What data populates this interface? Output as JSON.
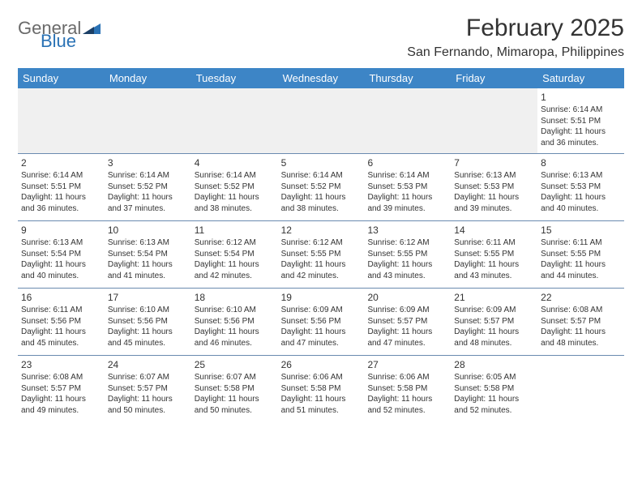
{
  "logo": {
    "textA": "General",
    "textB": "Blue",
    "colorA": "#6a6a6a",
    "colorB": "#2a72b5"
  },
  "title": "February 2025",
  "location": "San Fernando, Mimaropa, Philippines",
  "colors": {
    "header_bg": "#3d85c6",
    "header_text": "#ffffff",
    "row_divider": "#6a8bb0",
    "blank_bg": "#f0f0f0",
    "text": "#333333",
    "background": "#ffffff"
  },
  "typography": {
    "title_fontsize": 30,
    "location_fontsize": 16,
    "dayheader_fontsize": 13,
    "daynum_fontsize": 12,
    "info_fontsize": 10
  },
  "layout": {
    "columns": 7,
    "rows": 5
  },
  "dayNames": [
    "Sunday",
    "Monday",
    "Tuesday",
    "Wednesday",
    "Thursday",
    "Friday",
    "Saturday"
  ],
  "weeks": [
    [
      null,
      null,
      null,
      null,
      null,
      null,
      {
        "n": "1",
        "sunrise": "Sunrise: 6:14 AM",
        "sunset": "Sunset: 5:51 PM",
        "day1": "Daylight: 11 hours",
        "day2": "and 36 minutes."
      }
    ],
    [
      {
        "n": "2",
        "sunrise": "Sunrise: 6:14 AM",
        "sunset": "Sunset: 5:51 PM",
        "day1": "Daylight: 11 hours",
        "day2": "and 36 minutes."
      },
      {
        "n": "3",
        "sunrise": "Sunrise: 6:14 AM",
        "sunset": "Sunset: 5:52 PM",
        "day1": "Daylight: 11 hours",
        "day2": "and 37 minutes."
      },
      {
        "n": "4",
        "sunrise": "Sunrise: 6:14 AM",
        "sunset": "Sunset: 5:52 PM",
        "day1": "Daylight: 11 hours",
        "day2": "and 38 minutes."
      },
      {
        "n": "5",
        "sunrise": "Sunrise: 6:14 AM",
        "sunset": "Sunset: 5:52 PM",
        "day1": "Daylight: 11 hours",
        "day2": "and 38 minutes."
      },
      {
        "n": "6",
        "sunrise": "Sunrise: 6:14 AM",
        "sunset": "Sunset: 5:53 PM",
        "day1": "Daylight: 11 hours",
        "day2": "and 39 minutes."
      },
      {
        "n": "7",
        "sunrise": "Sunrise: 6:13 AM",
        "sunset": "Sunset: 5:53 PM",
        "day1": "Daylight: 11 hours",
        "day2": "and 39 minutes."
      },
      {
        "n": "8",
        "sunrise": "Sunrise: 6:13 AM",
        "sunset": "Sunset: 5:53 PM",
        "day1": "Daylight: 11 hours",
        "day2": "and 40 minutes."
      }
    ],
    [
      {
        "n": "9",
        "sunrise": "Sunrise: 6:13 AM",
        "sunset": "Sunset: 5:54 PM",
        "day1": "Daylight: 11 hours",
        "day2": "and 40 minutes."
      },
      {
        "n": "10",
        "sunrise": "Sunrise: 6:13 AM",
        "sunset": "Sunset: 5:54 PM",
        "day1": "Daylight: 11 hours",
        "day2": "and 41 minutes."
      },
      {
        "n": "11",
        "sunrise": "Sunrise: 6:12 AM",
        "sunset": "Sunset: 5:54 PM",
        "day1": "Daylight: 11 hours",
        "day2": "and 42 minutes."
      },
      {
        "n": "12",
        "sunrise": "Sunrise: 6:12 AM",
        "sunset": "Sunset: 5:55 PM",
        "day1": "Daylight: 11 hours",
        "day2": "and 42 minutes."
      },
      {
        "n": "13",
        "sunrise": "Sunrise: 6:12 AM",
        "sunset": "Sunset: 5:55 PM",
        "day1": "Daylight: 11 hours",
        "day2": "and 43 minutes."
      },
      {
        "n": "14",
        "sunrise": "Sunrise: 6:11 AM",
        "sunset": "Sunset: 5:55 PM",
        "day1": "Daylight: 11 hours",
        "day2": "and 43 minutes."
      },
      {
        "n": "15",
        "sunrise": "Sunrise: 6:11 AM",
        "sunset": "Sunset: 5:55 PM",
        "day1": "Daylight: 11 hours",
        "day2": "and 44 minutes."
      }
    ],
    [
      {
        "n": "16",
        "sunrise": "Sunrise: 6:11 AM",
        "sunset": "Sunset: 5:56 PM",
        "day1": "Daylight: 11 hours",
        "day2": "and 45 minutes."
      },
      {
        "n": "17",
        "sunrise": "Sunrise: 6:10 AM",
        "sunset": "Sunset: 5:56 PM",
        "day1": "Daylight: 11 hours",
        "day2": "and 45 minutes."
      },
      {
        "n": "18",
        "sunrise": "Sunrise: 6:10 AM",
        "sunset": "Sunset: 5:56 PM",
        "day1": "Daylight: 11 hours",
        "day2": "and 46 minutes."
      },
      {
        "n": "19",
        "sunrise": "Sunrise: 6:09 AM",
        "sunset": "Sunset: 5:56 PM",
        "day1": "Daylight: 11 hours",
        "day2": "and 47 minutes."
      },
      {
        "n": "20",
        "sunrise": "Sunrise: 6:09 AM",
        "sunset": "Sunset: 5:57 PM",
        "day1": "Daylight: 11 hours",
        "day2": "and 47 minutes."
      },
      {
        "n": "21",
        "sunrise": "Sunrise: 6:09 AM",
        "sunset": "Sunset: 5:57 PM",
        "day1": "Daylight: 11 hours",
        "day2": "and 48 minutes."
      },
      {
        "n": "22",
        "sunrise": "Sunrise: 6:08 AM",
        "sunset": "Sunset: 5:57 PM",
        "day1": "Daylight: 11 hours",
        "day2": "and 48 minutes."
      }
    ],
    [
      {
        "n": "23",
        "sunrise": "Sunrise: 6:08 AM",
        "sunset": "Sunset: 5:57 PM",
        "day1": "Daylight: 11 hours",
        "day2": "and 49 minutes."
      },
      {
        "n": "24",
        "sunrise": "Sunrise: 6:07 AM",
        "sunset": "Sunset: 5:57 PM",
        "day1": "Daylight: 11 hours",
        "day2": "and 50 minutes."
      },
      {
        "n": "25",
        "sunrise": "Sunrise: 6:07 AM",
        "sunset": "Sunset: 5:58 PM",
        "day1": "Daylight: 11 hours",
        "day2": "and 50 minutes."
      },
      {
        "n": "26",
        "sunrise": "Sunrise: 6:06 AM",
        "sunset": "Sunset: 5:58 PM",
        "day1": "Daylight: 11 hours",
        "day2": "and 51 minutes."
      },
      {
        "n": "27",
        "sunrise": "Sunrise: 6:06 AM",
        "sunset": "Sunset: 5:58 PM",
        "day1": "Daylight: 11 hours",
        "day2": "and 52 minutes."
      },
      {
        "n": "28",
        "sunrise": "Sunrise: 6:05 AM",
        "sunset": "Sunset: 5:58 PM",
        "day1": "Daylight: 11 hours",
        "day2": "and 52 minutes."
      },
      null
    ]
  ]
}
